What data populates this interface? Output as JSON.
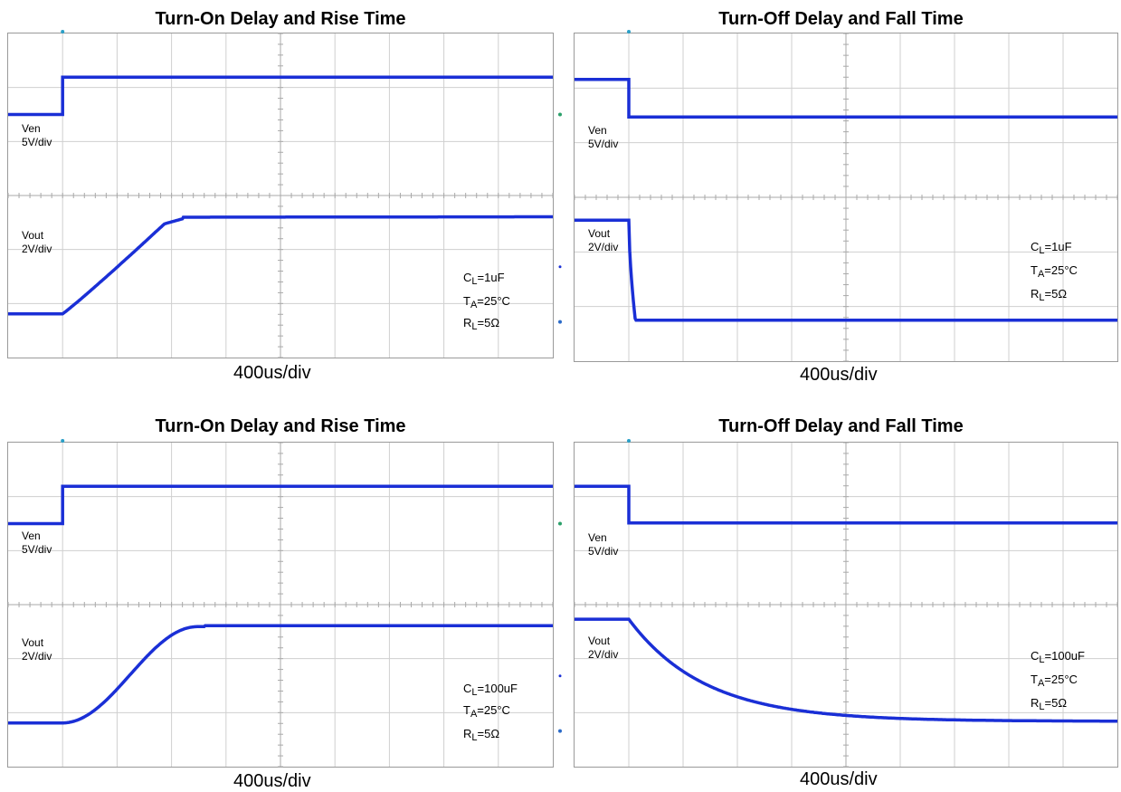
{
  "chart_data": [
    {
      "type": "line",
      "title": "Turn-On Delay and Rise Time",
      "xlabel": "400us/div",
      "series": [
        {
          "name": "Ven",
          "scale": "5V/div"
        },
        {
          "name": "Vout",
          "scale": "2V/div"
        }
      ],
      "conditions": {
        "cl": "1uF",
        "ta": "25°C",
        "rl": "5Ω"
      },
      "grid": true
    },
    {
      "type": "line",
      "title": "Turn-Off Delay and Fall Time",
      "xlabel": "400us/div",
      "series": [
        {
          "name": "Ven",
          "scale": "5V/div"
        },
        {
          "name": "Vout",
          "scale": "2V/div"
        }
      ],
      "conditions": {
        "cl": "1uF",
        "ta": "25°C",
        "rl": "5Ω"
      },
      "grid": true
    },
    {
      "type": "line",
      "title": "Turn-On Delay and Rise Time",
      "xlabel": "400us/div",
      "series": [
        {
          "name": "Ven",
          "scale": "5V/div"
        },
        {
          "name": "Vout",
          "scale": "2V/div"
        }
      ],
      "conditions": {
        "cl": "100uF",
        "ta": "25°C",
        "rl": "5Ω"
      },
      "grid": true
    },
    {
      "type": "line",
      "title": "Turn-Off Delay and Fall Time",
      "xlabel": "400us/div",
      "series": [
        {
          "name": "Ven",
          "scale": "5V/div"
        },
        {
          "name": "Vout",
          "scale": "2V/div"
        }
      ],
      "conditions": {
        "cl": "100uF",
        "ta": "25°C",
        "rl": "5Ω"
      },
      "grid": true
    }
  ],
  "labels": {
    "cl_prefix": "C",
    "cl_sub": "L",
    "ta_prefix": "T",
    "ta_sub": "A",
    "rl_prefix": "R",
    "rl_sub": "L"
  },
  "colors": {
    "trace": "#1a2fd6",
    "grid": "#cfcfcf",
    "center_axis": "#a9a9a9"
  }
}
